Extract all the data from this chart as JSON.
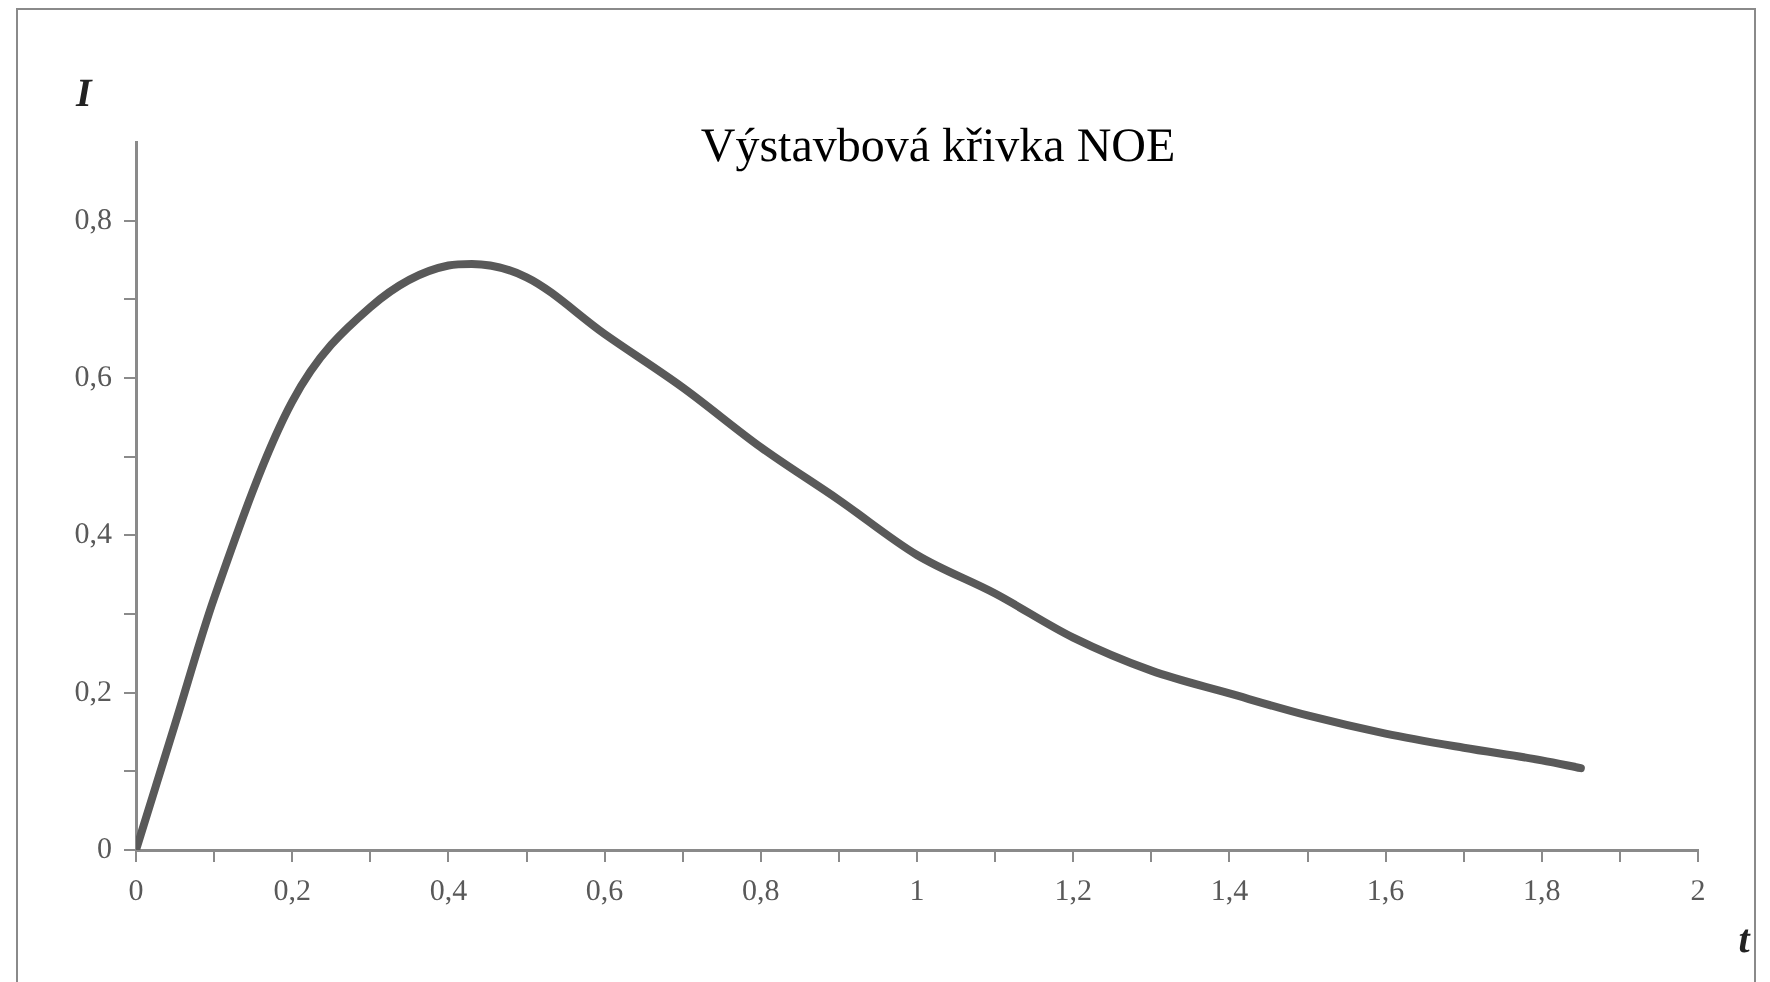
{
  "chart_data": {
    "type": "line",
    "title": "Výstavbová křivka NOE",
    "xlabel": "t",
    "ylabel": "I",
    "x": [
      0,
      0.05,
      0.1,
      0.2,
      0.3,
      0.4,
      0.43,
      0.5,
      0.6,
      0.7,
      0.8,
      0.9,
      1,
      1.1,
      1.2,
      1.3,
      1.4,
      1.5,
      1.6,
      1.7,
      1.8,
      1.85
    ],
    "series": [
      {
        "color": "#595959",
        "values": [
          0,
          0.16,
          0.32,
          0.57,
          0.69,
          0.743,
          0.745,
          0.728,
          0.656,
          0.588,
          0.512,
          0.445,
          0.375,
          0.326,
          0.27,
          0.228,
          0.199,
          0.171,
          0.148,
          0.13,
          0.114,
          0.104
        ]
      }
    ],
    "xlim": [
      0,
      2
    ],
    "xticks": [
      0,
      {
        "value": 0.1,
        "label": null
      },
      {
        "value": 0.2,
        "label": "0,2"
      },
      {
        "value": 0.3,
        "label": null
      },
      {
        "value": 0.4,
        "label": "0,4"
      },
      {
        "value": 0.5,
        "label": null
      },
      {
        "value": 0.6,
        "label": "0,6"
      },
      {
        "value": 0.7,
        "label": null
      },
      {
        "value": 0.8,
        "label": "0,8"
      },
      {
        "value": 0.9,
        "label": null
      },
      1,
      {
        "value": 1.1,
        "label": null
      },
      {
        "value": 1.2,
        "label": "1,2"
      },
      {
        "value": 1.3,
        "label": null
      },
      {
        "value": 1.4,
        "label": "1,4"
      },
      {
        "value": 1.5,
        "label": null
      },
      {
        "value": 1.6,
        "label": "1,6"
      },
      {
        "value": 1.7,
        "label": null
      },
      {
        "value": 1.8,
        "label": "1,8"
      },
      {
        "value": 1.9,
        "label": null
      },
      2
    ],
    "ylim": [
      0,
      0.9
    ],
    "yticks": [
      0,
      {
        "value": 0.1,
        "label": null
      },
      {
        "value": 0.2,
        "label": "0,2"
      },
      {
        "value": 0.3,
        "label": null
      },
      {
        "value": 0.4,
        "label": "0,4"
      },
      {
        "value": 0.5,
        "label": null
      },
      {
        "value": 0.6,
        "label": "0,6"
      },
      {
        "value": 0.7,
        "label": null
      },
      {
        "value": 0.8,
        "label": "0,8"
      }
    ],
    "grid": false,
    "legend": false,
    "marker": "none",
    "line_style": "solid"
  }
}
